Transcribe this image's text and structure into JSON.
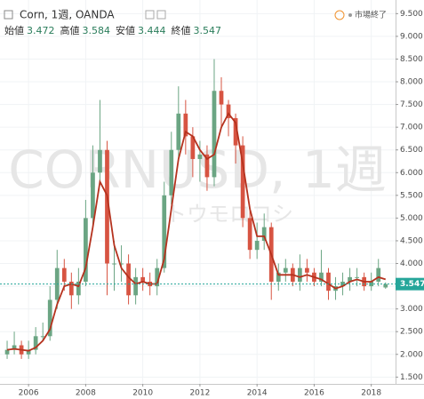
{
  "chart_data": {
    "type": "candlestick",
    "title": "Corn, 1週, OANDA",
    "status": "市場終了",
    "watermark": "CORNUSD, 1週",
    "watermark_sub": "トウモロコシ",
    "ohlc_header": [
      {
        "label": "始値",
        "value": 3.472
      },
      {
        "label": "高値",
        "value": 3.584
      },
      {
        "label": "安値",
        "value": 3.444
      },
      {
        "label": "終値",
        "value": 3.547
      }
    ],
    "x": [
      2005.25,
      2005.5,
      2005.75,
      2006,
      2006.25,
      2006.5,
      2006.75,
      2007,
      2007.25,
      2007.5,
      2007.75,
      2008,
      2008.25,
      2008.5,
      2008.75,
      2009,
      2009.25,
      2009.5,
      2009.75,
      2010,
      2010.25,
      2010.5,
      2010.75,
      2011,
      2011.25,
      2011.5,
      2011.75,
      2012,
      2012.25,
      2012.5,
      2012.75,
      2013,
      2013.25,
      2013.5,
      2013.75,
      2014,
      2014.25,
      2014.5,
      2014.75,
      2015,
      2015.25,
      2015.5,
      2015.75,
      2016,
      2016.25,
      2016.5,
      2016.75,
      2017,
      2017.25,
      2017.5,
      2017.75,
      2018,
      2018.25,
      2018.5
    ],
    "open": [
      2.0,
      2.1,
      2.2,
      2.0,
      2.1,
      2.4,
      2.4,
      3.2,
      3.9,
      3.6,
      3.3,
      3.6,
      5.0,
      6.0,
      6.5,
      4.0,
      4.0,
      4.0,
      3.3,
      3.7,
      3.6,
      3.5,
      3.9,
      5.5,
      6.5,
      7.3,
      6.8,
      6.3,
      6.4,
      5.9,
      7.8,
      7.5,
      7.2,
      6.6,
      5.0,
      4.3,
      4.5,
      4.8,
      3.6,
      3.8,
      3.9,
      3.6,
      3.9,
      3.8,
      3.6,
      3.8,
      3.4,
      3.5,
      3.6,
      3.7,
      3.7,
      3.5,
      3.6,
      3.472
    ],
    "high": [
      2.3,
      2.5,
      2.3,
      2.3,
      2.6,
      2.7,
      3.5,
      4.3,
      4.1,
      3.8,
      3.9,
      5.4,
      6.6,
      7.6,
      6.7,
      4.5,
      4.4,
      4.2,
      3.9,
      3.9,
      3.8,
      4.1,
      5.8,
      6.9,
      7.9,
      7.6,
      7.0,
      6.7,
      6.6,
      8.5,
      8.1,
      7.6,
      7.3,
      6.8,
      5.2,
      4.9,
      5.1,
      4.9,
      4.0,
      4.1,
      4.0,
      4.2,
      4.1,
      3.9,
      4.3,
      3.9,
      3.7,
      3.8,
      3.9,
      3.9,
      3.8,
      3.8,
      4.1,
      3.584
    ],
    "low": [
      1.9,
      2.0,
      1.9,
      1.9,
      2.0,
      2.3,
      2.3,
      3.0,
      3.4,
      3.0,
      3.1,
      3.5,
      4.8,
      5.8,
      3.3,
      3.4,
      3.6,
      3.1,
      3.1,
      3.4,
      3.3,
      3.3,
      3.8,
      5.3,
      6.3,
      6.4,
      5.9,
      5.8,
      5.6,
      5.7,
      7.0,
      6.8,
      6.2,
      4.8,
      4.1,
      4.1,
      4.3,
      3.2,
      3.4,
      3.6,
      3.5,
      3.4,
      3.6,
      3.5,
      3.5,
      3.2,
      3.2,
      3.3,
      3.4,
      3.5,
      3.4,
      3.4,
      3.5,
      3.444
    ],
    "close": [
      2.1,
      2.2,
      2.0,
      2.1,
      2.4,
      2.4,
      3.2,
      3.9,
      3.6,
      3.3,
      3.6,
      5.0,
      6.0,
      6.5,
      4.0,
      4.0,
      4.0,
      3.3,
      3.7,
      3.6,
      3.5,
      3.9,
      5.5,
      6.5,
      7.3,
      6.8,
      6.3,
      6.4,
      5.9,
      7.8,
      7.5,
      7.2,
      6.6,
      5.0,
      4.3,
      4.5,
      4.8,
      3.6,
      3.8,
      3.9,
      3.6,
      3.9,
      3.8,
      3.6,
      3.8,
      3.4,
      3.5,
      3.6,
      3.7,
      3.7,
      3.5,
      3.6,
      3.9,
      3.547
    ],
    "moving_average": [
      2.1,
      2.12,
      2.1,
      2.08,
      2.15,
      2.3,
      2.55,
      3.1,
      3.5,
      3.55,
      3.5,
      3.9,
      4.8,
      5.8,
      5.5,
      4.4,
      3.9,
      3.7,
      3.55,
      3.6,
      3.55,
      3.55,
      4.1,
      5.2,
      6.3,
      6.9,
      6.8,
      6.5,
      6.3,
      6.4,
      7.0,
      7.3,
      7.1,
      6.2,
      5.2,
      4.6,
      4.6,
      4.2,
      3.75,
      3.75,
      3.75,
      3.7,
      3.75,
      3.7,
      3.65,
      3.55,
      3.45,
      3.5,
      3.6,
      3.65,
      3.6,
      3.6,
      3.7,
      3.65
    ],
    "up_color": "#6ba583",
    "down_color": "#d75442",
    "ma_color": "#b5321e",
    "price_color": "#26a69a",
    "xlim": [
      2005.0,
      2018.85
    ],
    "xticks": [
      2006,
      2008,
      2010,
      2012,
      2014,
      2016,
      2018
    ],
    "ylim": [
      1.35,
      9.8
    ],
    "yticks": [
      {
        "value": 1.5,
        "label": "1.500"
      },
      {
        "value": 2,
        "label": "2.000"
      },
      {
        "value": 2.5,
        "label": "2.500"
      },
      {
        "value": 3,
        "label": "3.000"
      },
      {
        "value": 3.5,
        "label": "3.500"
      },
      {
        "value": 4,
        "label": "4.000"
      },
      {
        "value": 4.5,
        "label": "4.500"
      },
      {
        "value": 5,
        "label": "5.000"
      },
      {
        "value": 5.5,
        "label": "5.500"
      },
      {
        "value": 6,
        "label": "6.000"
      },
      {
        "value": 6.5,
        "label": "6.500"
      },
      {
        "value": 7,
        "label": "7.000"
      },
      {
        "value": 7.5,
        "label": "7.500"
      },
      {
        "value": 8,
        "label": "8.000"
      },
      {
        "value": 8.5,
        "label": "8.500"
      },
      {
        "value": 9,
        "label": "9.000"
      },
      {
        "value": 9.5,
        "label": "9.500"
      }
    ],
    "grid": true
  }
}
